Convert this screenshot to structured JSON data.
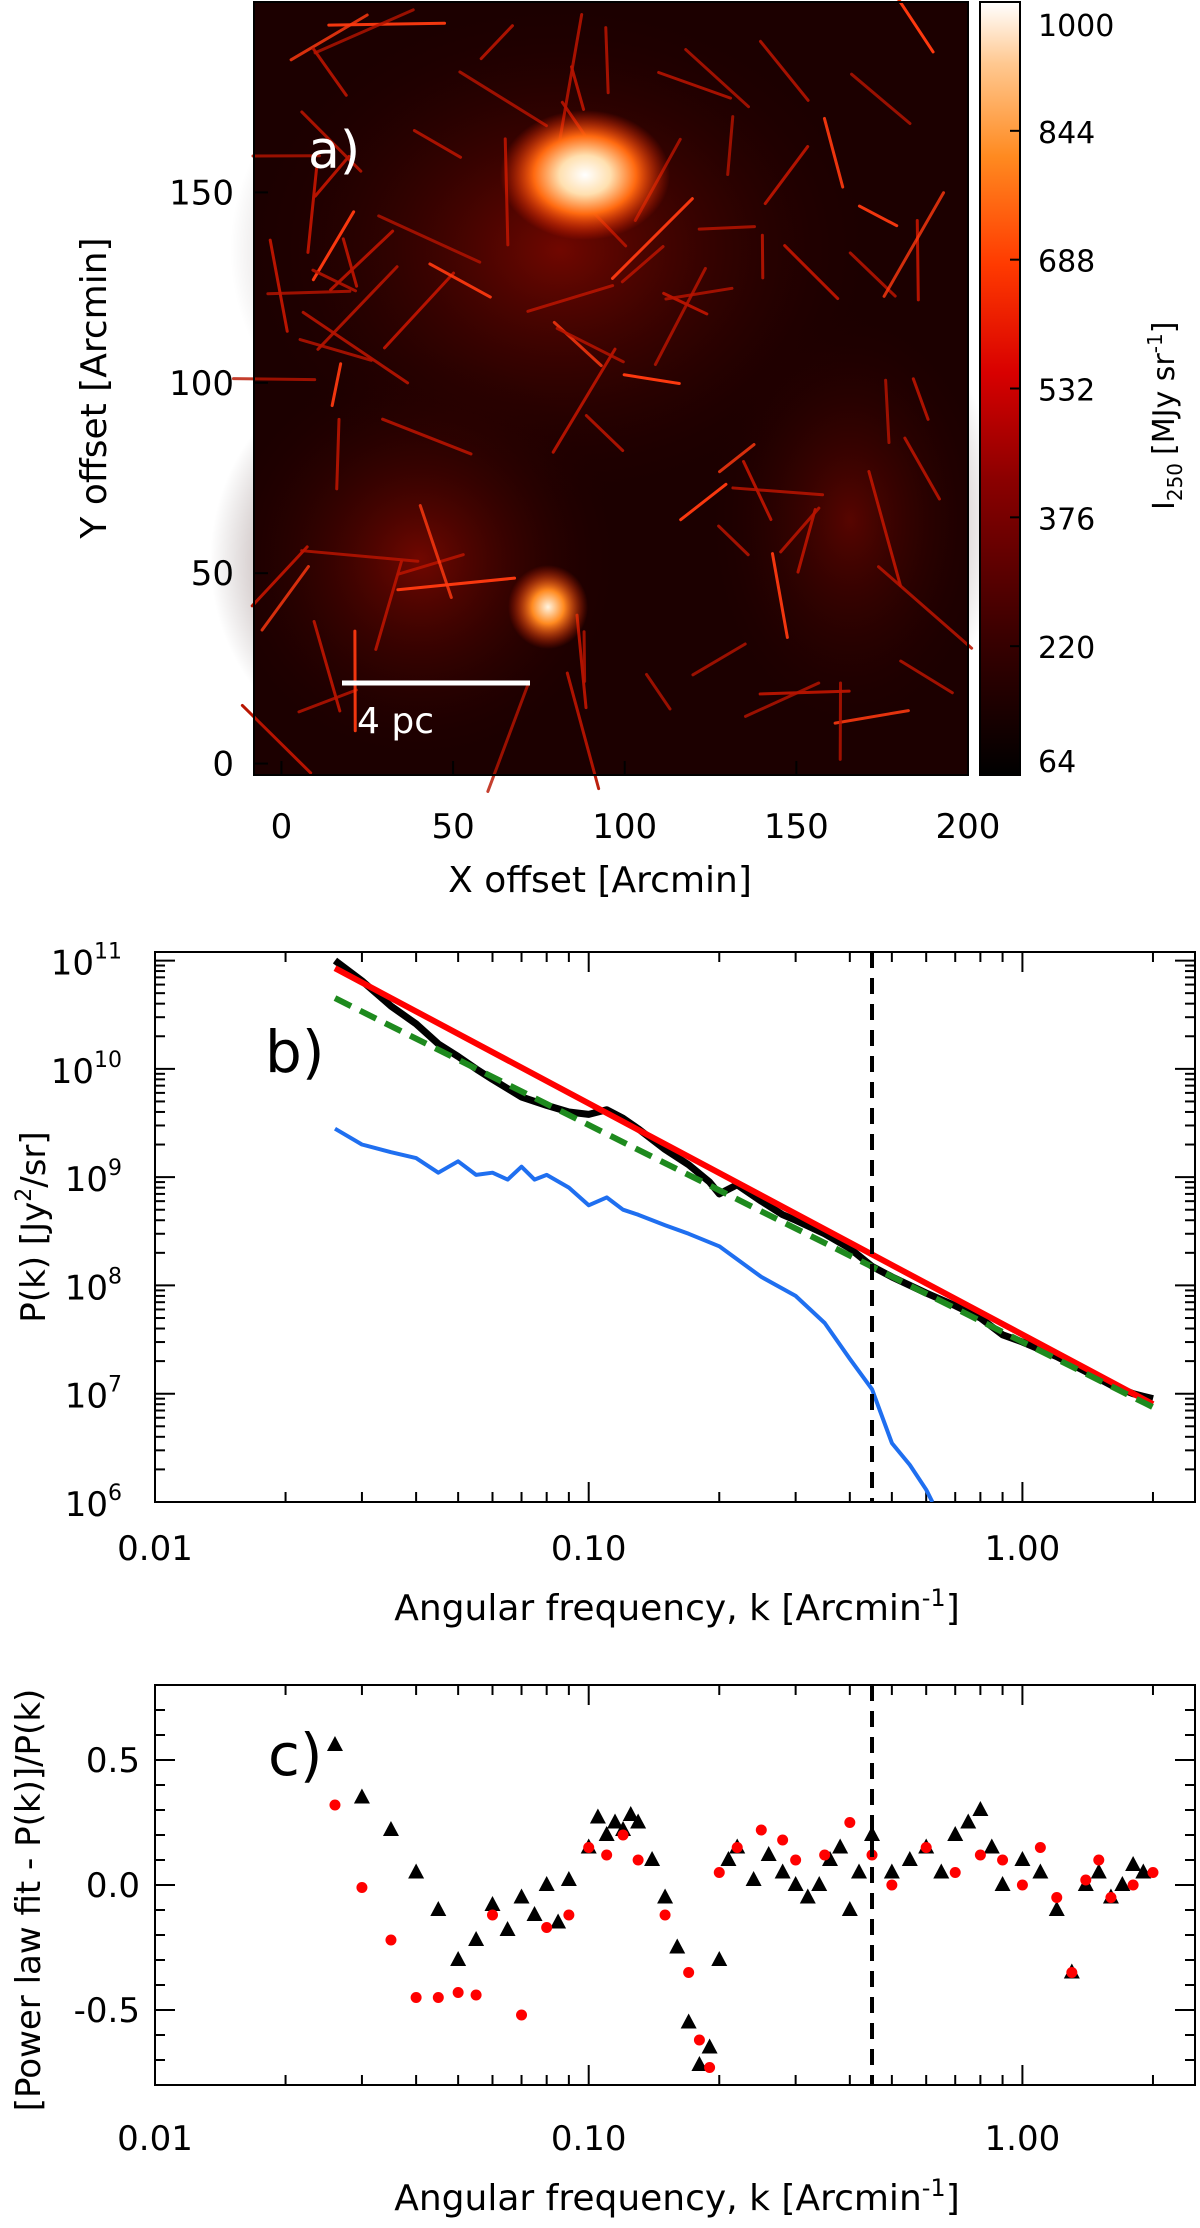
{
  "chart_data": [
    {
      "panel": "a)",
      "type": "heatmap",
      "xlabel": "X offset [Arcmin]",
      "ylabel": "Y offset [Arcmin]",
      "xlim": [
        -8,
        200
      ],
      "ylim": [
        -3,
        200
      ],
      "xticks": [
        0,
        50,
        100,
        150,
        200
      ],
      "yticks": [
        0,
        50,
        100,
        150
      ],
      "scalebar_label": "4 pc",
      "colorbar": {
        "label": "I",
        "label_sub": "250",
        "label_unit": "[MJy sr",
        "label_unit_sup": "-1",
        "label_unit_end": "]",
        "ticks": [
          1000,
          844,
          688,
          532,
          376,
          220,
          64
        ],
        "range": [
          64,
          1000
        ]
      },
      "bright_regions": [
        {
          "x": 85,
          "y": 155,
          "level": 1000
        },
        {
          "x": 78,
          "y": 44,
          "level": 900
        }
      ]
    },
    {
      "panel": "b)",
      "type": "line",
      "xscale": "log",
      "yscale": "log",
      "xlabel": "Angular frequency, k [Arcmin",
      "xlabel_sup": "-1",
      "xlabel_end": "]",
      "ylabel": "P(k) [Jy",
      "ylabel_sup": "2",
      "ylabel_end": "/sr]",
      "xlim": [
        0.01,
        2.5
      ],
      "ylim": [
        1000000.0,
        120000000000.0
      ],
      "xticklabels": [
        "0.01",
        "0.10",
        "1.00"
      ],
      "ytick_exponents": [
        11,
        10,
        9,
        8,
        7,
        6
      ],
      "ytick_base": "10",
      "vline_x": 0.45,
      "series": [
        {
          "style": "black",
          "color": "#000000",
          "x": [
            0.026,
            0.03,
            0.035,
            0.04,
            0.045,
            0.05,
            0.055,
            0.06,
            0.07,
            0.08,
            0.09,
            0.1,
            0.11,
            0.12,
            0.13,
            0.15,
            0.17,
            0.19,
            0.2,
            0.22,
            0.25,
            0.28,
            0.3,
            0.35,
            0.4,
            0.45,
            0.5,
            0.6,
            0.7,
            0.8,
            0.9,
            1.0,
            1.2,
            1.4,
            1.6,
            1.8,
            2.0
          ],
          "y": [
            100000000000.0,
            65000000000.0,
            38000000000.0,
            26000000000.0,
            17000000000.0,
            13000000000.0,
            10000000000.0,
            8000000000.0,
            5500000000.0,
            4600000000.0,
            4000000000.0,
            3800000000.0,
            4200000000.0,
            3500000000.0,
            2800000000.0,
            1800000000.0,
            1300000000.0,
            900000000.0,
            700000000.0,
            850000000.0,
            600000000.0,
            450000000.0,
            400000000.0,
            300000000.0,
            220000000.0,
            150000000.0,
            120000000.0,
            85000000.0,
            65000000.0,
            50000000.0,
            35000000.0,
            30000000.0,
            22000000.0,
            16000000.0,
            12000000.0,
            10000000.0,
            9000000.0
          ]
        },
        {
          "style": "blue",
          "color": "#1f6ff0",
          "x": [
            0.026,
            0.03,
            0.035,
            0.04,
            0.045,
            0.05,
            0.055,
            0.06,
            0.065,
            0.07,
            0.075,
            0.08,
            0.09,
            0.1,
            0.11,
            0.12,
            0.13,
            0.15,
            0.17,
            0.2,
            0.25,
            0.3,
            0.35,
            0.4,
            0.45,
            0.5,
            0.55,
            0.6,
            0.62
          ],
          "y": [
            2800000000.0,
            2000000000.0,
            1700000000.0,
            1500000000.0,
            1100000000.0,
            1400000000.0,
            1050000000.0,
            1100000000.0,
            950000000.0,
            1250000000.0,
            950000000.0,
            1050000000.0,
            800000000.0,
            550000000.0,
            650000000.0,
            500000000.0,
            450000000.0,
            360000000.0,
            300000000.0,
            230000000.0,
            120000000.0,
            80000000.0,
            45000000.0,
            21000000.0,
            11000000.0,
            3500000.0,
            2200000.0,
            1300000.0,
            1000000.0
          ]
        },
        {
          "style": "red-fit",
          "color": "#ff0000",
          "x": [
            0.026,
            2.0
          ],
          "y": [
            85000000000.0,
            8000000.0
          ]
        },
        {
          "style": "green-dashed",
          "color": "#1e8a1e",
          "x": [
            0.026,
            2.0
          ],
          "y": [
            45000000000.0,
            7500000.0
          ]
        }
      ]
    },
    {
      "panel": "c)",
      "type": "scatter",
      "xscale": "log",
      "xlabel": "Angular frequency, k [Arcmin",
      "xlabel_sup": "-1",
      "xlabel_end": "]",
      "ylabel": "[Power law fit - P(k)]/P(k)",
      "xlim": [
        0.01,
        2.5
      ],
      "ylim": [
        -0.8,
        0.8
      ],
      "xticklabels": [
        "0.01",
        "0.10",
        "1.00"
      ],
      "yticks": [
        0.5,
        0.0,
        -0.5
      ],
      "yticklabels": [
        "0.5",
        "0.0",
        "-0.5"
      ],
      "vline_x": 0.45,
      "series": [
        {
          "marker": "triangle",
          "color": "#000000",
          "x": [
            0.026,
            0.03,
            0.035,
            0.04,
            0.045,
            0.05,
            0.055,
            0.06,
            0.065,
            0.07,
            0.075,
            0.08,
            0.085,
            0.09,
            0.1,
            0.105,
            0.11,
            0.115,
            0.12,
            0.125,
            0.13,
            0.14,
            0.15,
            0.16,
            0.17,
            0.18,
            0.19,
            0.2,
            0.21,
            0.22,
            0.24,
            0.26,
            0.28,
            0.3,
            0.32,
            0.34,
            0.36,
            0.38,
            0.4,
            0.42,
            0.45,
            0.5,
            0.55,
            0.6,
            0.65,
            0.7,
            0.75,
            0.8,
            0.85,
            0.9,
            1.0,
            1.1,
            1.2,
            1.3,
            1.4,
            1.5,
            1.6,
            1.7,
            1.8,
            1.9
          ],
          "y": [
            0.56,
            0.35,
            0.22,
            0.05,
            -0.1,
            -0.3,
            -0.22,
            -0.08,
            -0.18,
            -0.05,
            -0.12,
            0.0,
            -0.15,
            0.02,
            0.15,
            0.27,
            0.2,
            0.25,
            0.22,
            0.28,
            0.25,
            0.1,
            -0.05,
            -0.25,
            -0.55,
            -0.72,
            -0.65,
            -0.3,
            0.1,
            0.15,
            0.02,
            0.12,
            0.05,
            0.0,
            -0.05,
            0.0,
            0.1,
            0.15,
            -0.1,
            0.05,
            0.2,
            0.05,
            0.1,
            0.15,
            0.05,
            0.2,
            0.25,
            0.3,
            0.15,
            0.0,
            0.1,
            0.05,
            -0.1,
            -0.35,
            0.0,
            0.05,
            -0.05,
            0.0,
            0.08,
            0.05
          ]
        },
        {
          "marker": "circle",
          "color": "#ff0000",
          "x": [
            0.026,
            0.03,
            0.035,
            0.04,
            0.045,
            0.05,
            0.055,
            0.06,
            0.07,
            0.08,
            0.09,
            0.1,
            0.11,
            0.12,
            0.13,
            0.15,
            0.17,
            0.18,
            0.19,
            0.2,
            0.22,
            0.25,
            0.28,
            0.3,
            0.35,
            0.4,
            0.45,
            0.5,
            0.6,
            0.7,
            0.8,
            0.9,
            1.0,
            1.1,
            1.2,
            1.3,
            1.4,
            1.5,
            1.6,
            1.8,
            2.0
          ],
          "y": [
            0.32,
            -0.01,
            -0.22,
            -0.45,
            -0.45,
            -0.43,
            -0.44,
            -0.12,
            -0.52,
            -0.17,
            -0.12,
            0.15,
            0.12,
            0.2,
            0.1,
            -0.12,
            -0.35,
            -0.62,
            -0.73,
            0.05,
            0.15,
            0.22,
            0.18,
            0.1,
            0.12,
            0.25,
            0.12,
            0.0,
            0.15,
            0.05,
            0.12,
            0.1,
            0.0,
            0.15,
            -0.05,
            -0.35,
            0.02,
            0.1,
            -0.05,
            0.0,
            0.05
          ]
        }
      ]
    }
  ]
}
